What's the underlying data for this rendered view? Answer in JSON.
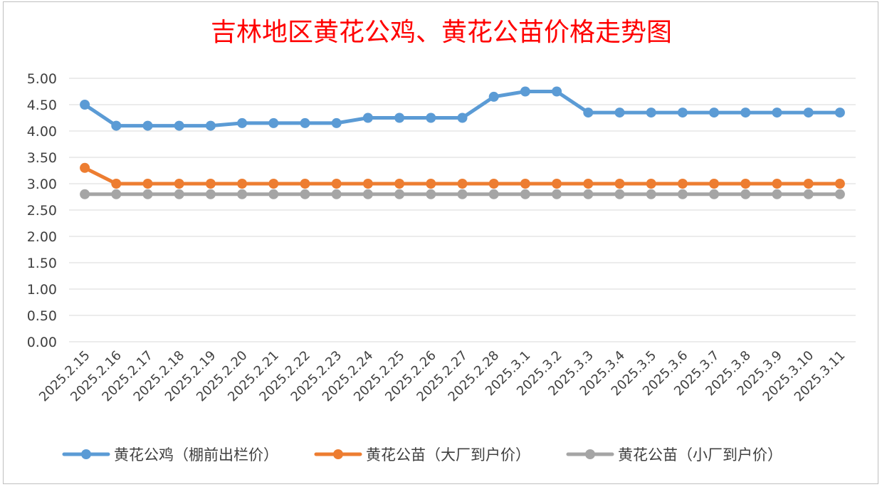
{
  "chart_data": {
    "type": "line",
    "title": "吉林地区黄花公鸡、黄花公苗价格走势图",
    "xlabel": "",
    "ylabel": "",
    "ylim": [
      0,
      5
    ],
    "yticks": [
      "0.00",
      "0.50",
      "1.00",
      "1.50",
      "2.00",
      "2.50",
      "3.00",
      "3.50",
      "4.00",
      "4.50",
      "5.00"
    ],
    "categories": [
      "2025.2.15",
      "2025.2.16",
      "2025.2.17",
      "2025.2.18",
      "2025.2.19",
      "2025.2.20",
      "2025.2.21",
      "2025.2.22",
      "2025.2.23",
      "2025.2.24",
      "2025.2.25",
      "2025.2.26",
      "2025.2.27",
      "2025.2.28",
      "2025.3.1",
      "2025.3.2",
      "2025.3.3",
      "2025.3.4",
      "2025.3.5",
      "2025.3.6",
      "2025.3.7",
      "2025.3.8",
      "2025.3.9",
      "2025.3.10",
      "2025.3.11"
    ],
    "grid": true,
    "legend_position": "bottom",
    "series": [
      {
        "name": "黄花公鸡（棚前出栏价）",
        "color": "#5b9bd5",
        "values": [
          4.5,
          4.1,
          4.1,
          4.1,
          4.1,
          4.15,
          4.15,
          4.15,
          4.15,
          4.25,
          4.25,
          4.25,
          4.25,
          4.65,
          4.75,
          4.75,
          4.35,
          4.35,
          4.35,
          4.35,
          4.35,
          4.35,
          4.35,
          4.35,
          4.35
        ]
      },
      {
        "name": "黄花公苗（大厂到户价）",
        "color": "#ed7d31",
        "values": [
          3.3,
          3.0,
          3.0,
          3.0,
          3.0,
          3.0,
          3.0,
          3.0,
          3.0,
          3.0,
          3.0,
          3.0,
          3.0,
          3.0,
          3.0,
          3.0,
          3.0,
          3.0,
          3.0,
          3.0,
          3.0,
          3.0,
          3.0,
          3.0,
          3.0
        ]
      },
      {
        "name": "黄花公苗（小厂到户价）",
        "color": "#a5a5a5",
        "values": [
          2.8,
          2.8,
          2.8,
          2.8,
          2.8,
          2.8,
          2.8,
          2.8,
          2.8,
          2.8,
          2.8,
          2.8,
          2.8,
          2.8,
          2.8,
          2.8,
          2.8,
          2.8,
          2.8,
          2.8,
          2.8,
          2.8,
          2.8,
          2.8,
          2.8
        ]
      }
    ]
  }
}
